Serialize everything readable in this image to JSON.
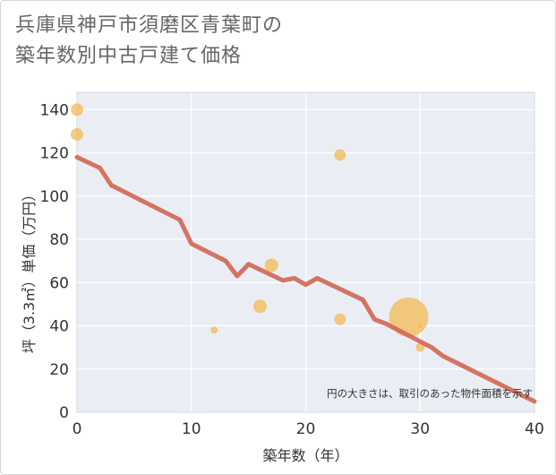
{
  "title_line1": "兵庫県神戸市須磨区青葉町の",
  "title_line2": "築年数別中古戸建て価格",
  "chart_data": {
    "type": "scatter",
    "title": "兵庫県神戸市須磨区青葉町の築年数別中古戸建て価格",
    "xlabel": "築年数（年）",
    "ylabel": "坪（3.3㎡）単価（万円）",
    "xlim": [
      0,
      40
    ],
    "ylim": [
      0,
      148
    ],
    "xticks": [
      0,
      10,
      20,
      30,
      40
    ],
    "yticks": [
      0,
      20,
      40,
      60,
      80,
      100,
      120,
      140
    ],
    "grid": true,
    "note": "円の大きさは、取引のあった物件面積を示す",
    "colors": {
      "bubble": "#f3b54a",
      "trend": "#d26d5a"
    },
    "bubbles": [
      {
        "x": 0,
        "y": 140,
        "size": 7
      },
      {
        "x": 0,
        "y": 128.5,
        "size": 7
      },
      {
        "x": 12,
        "y": 38,
        "size": 4
      },
      {
        "x": 16,
        "y": 49,
        "size": 7.5
      },
      {
        "x": 17,
        "y": 68,
        "size": 7.5
      },
      {
        "x": 23,
        "y": 119,
        "size": 6.5
      },
      {
        "x": 23,
        "y": 43,
        "size": 6.5
      },
      {
        "x": 29,
        "y": 44,
        "size": 22
      },
      {
        "x": 30,
        "y": 30,
        "size": 5
      },
      {
        "x": 30,
        "y": 40,
        "size": 2.5
      }
    ],
    "trend": {
      "x": [
        0,
        2,
        3,
        9,
        10,
        13,
        14,
        15,
        18,
        19,
        20,
        21,
        25,
        26,
        27,
        31,
        32,
        40
      ],
      "y": [
        118,
        113,
        105,
        89,
        78,
        70,
        63,
        68.5,
        61,
        62,
        59,
        62,
        52,
        43,
        41,
        30,
        26,
        5
      ]
    }
  }
}
